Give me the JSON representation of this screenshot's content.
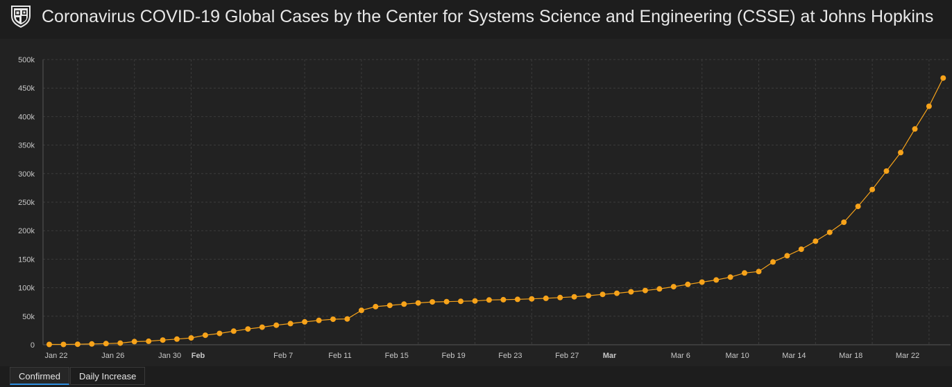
{
  "header": {
    "title": "Coronavirus COVID-19 Global Cases by the Center for Systems Science and Engineering (CSSE) at Johns Hopkins U…",
    "logo_icon": "jhu-shield-icon"
  },
  "tabs": [
    {
      "label": "Confirmed",
      "active": true
    },
    {
      "label": "Daily Increase",
      "active": false
    }
  ],
  "colors": {
    "series": "#f7a31a",
    "background": "#222222",
    "grid": "#3c3c3c",
    "active_tab": "#2e8ee0"
  },
  "chart_data": {
    "type": "line",
    "title": "",
    "xlabel": "",
    "ylabel": "",
    "ylim": [
      0,
      500000
    ],
    "yticks": [
      "0",
      "50k",
      "100k",
      "150k",
      "200k",
      "250k",
      "300k",
      "350k",
      "400k",
      "450k",
      "500k"
    ],
    "xticks": [
      {
        "day": 0,
        "label": "Jan 22",
        "bold": false
      },
      {
        "day": 4,
        "label": "Jan 26",
        "bold": false
      },
      {
        "day": 8,
        "label": "Jan 30",
        "bold": false
      },
      {
        "day": 10,
        "label": "Feb",
        "bold": true
      },
      {
        "day": 16,
        "label": "Feb 7",
        "bold": false
      },
      {
        "day": 20,
        "label": "Feb 11",
        "bold": false
      },
      {
        "day": 24,
        "label": "Feb 15",
        "bold": false
      },
      {
        "day": 28,
        "label": "Feb 19",
        "bold": false
      },
      {
        "day": 32,
        "label": "Feb 23",
        "bold": false
      },
      {
        "day": 36,
        "label": "Feb 27",
        "bold": false
      },
      {
        "day": 39,
        "label": "Mar",
        "bold": true
      },
      {
        "day": 44,
        "label": "Mar 6",
        "bold": false
      },
      {
        "day": 48,
        "label": "Mar 10",
        "bold": false
      },
      {
        "day": 52,
        "label": "Mar 14",
        "bold": false
      },
      {
        "day": 56,
        "label": "Mar 18",
        "bold": false
      },
      {
        "day": 60,
        "label": "Mar 22",
        "bold": false
      }
    ],
    "grid": true,
    "series": [
      {
        "values": [
          555,
          654,
          941,
          1434,
          2118,
          2927,
          5578,
          6166,
          8234,
          9927,
          12038,
          16787,
          19881,
          23892,
          27635,
          30817,
          34391,
          37120,
          40150,
          42762,
          44802,
          45221,
          60368,
          66885,
          69030,
          71224,
          73258,
          75136,
          75639,
          76197,
          76823,
          78579,
          78965,
          79568,
          80413,
          81395,
          82754,
          84120,
          86011,
          88369,
          90306,
          92840,
          95120,
          97886,
          101801,
          105847,
          109821,
          113590,
          118620,
          125875,
          128352,
          145205,
          156101,
          167454,
          181574,
          197102,
          214821,
          242570,
          272208,
          304507,
          336953,
          378235,
          418045,
          467653
        ]
      }
    ]
  }
}
